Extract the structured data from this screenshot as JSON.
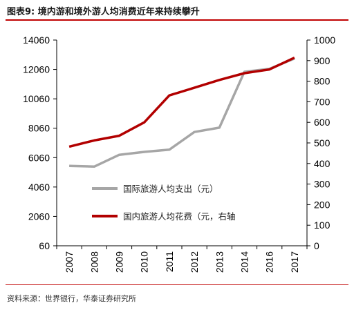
{
  "title": "图表9:  境内游和境外游人均消费近年来持续攀升",
  "source": "资料来源：世界银行，华泰证券研究所",
  "chart_data": {
    "type": "line",
    "title": "",
    "xlabel": "",
    "ylabel": "",
    "ylabel_right": "",
    "categories": [
      "2007",
      "2008",
      "2009",
      "2010",
      "2011",
      "2012",
      "2013",
      "2014",
      "2016",
      "2017"
    ],
    "y_left_ticks": [
      "60",
      "2060",
      "4060",
      "6060",
      "8060",
      "10060",
      "12060",
      "14060"
    ],
    "y_right_ticks": [
      "0",
      "100",
      "200",
      "300",
      "400",
      "500",
      "600",
      "700",
      "800",
      "900",
      "1000"
    ],
    "ylim_left": [
      60,
      14060
    ],
    "ylim_right": [
      0,
      1000
    ],
    "grid": false,
    "legend_position": "center-right",
    "series": [
      {
        "name": "国际旅游人均支出（元）",
        "axis": "left",
        "color": "#a6a6a6",
        "values": [
          5500,
          5450,
          6250,
          6450,
          6600,
          7800,
          8100,
          11900,
          12100,
          12800
        ]
      },
      {
        "name": "国内旅游人均花费（元，右轴",
        "axis": "right",
        "color": "#b20000",
        "values": [
          482,
          512,
          535,
          600,
          731,
          768,
          806,
          839,
          857,
          914
        ]
      }
    ]
  }
}
